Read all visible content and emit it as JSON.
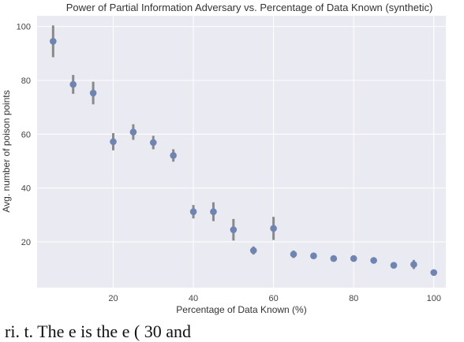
{
  "chart_data": {
    "type": "scatter",
    "title": "Power of Partial Information Adversary vs. Percentage of Data Known (synthetic)",
    "xlabel": "Percentage of Data Known (%)",
    "ylabel": "Avg. number of poison points",
    "xlim": [
      1,
      103
    ],
    "ylim": [
      3,
      104
    ],
    "xticks": [
      20,
      40,
      60,
      80,
      100
    ],
    "yticks": [
      20,
      40,
      60,
      80,
      100
    ],
    "grid": true,
    "colors": {
      "background": "#eaeaf2",
      "grid": "#ffffff",
      "point": "#6f84b0",
      "errorbar": "#8a8a8a"
    },
    "series": [
      {
        "x": [
          5,
          10,
          15,
          20,
          25,
          30,
          35,
          40,
          45,
          50,
          55,
          60,
          65,
          70,
          75,
          80,
          85,
          90,
          95,
          100
        ],
        "y": [
          94.5,
          78.5,
          75.3,
          57.2,
          60.8,
          56.9,
          52.1,
          31.2,
          31.2,
          24.5,
          16.8,
          25.0,
          15.4,
          14.8,
          13.8,
          13.8,
          13.1,
          11.3,
          11.6,
          8.6
        ],
        "err": [
          5.9,
          3.5,
          4.2,
          3.2,
          2.9,
          2.5,
          2.3,
          2.5,
          3.5,
          4.0,
          1.5,
          4.3,
          1.4,
          0.6,
          0.6,
          0.6,
          0.6,
          1.1,
          1.7,
          0.5
        ]
      }
    ]
  },
  "caption": "ri. t. The e is the e ( 30 and"
}
